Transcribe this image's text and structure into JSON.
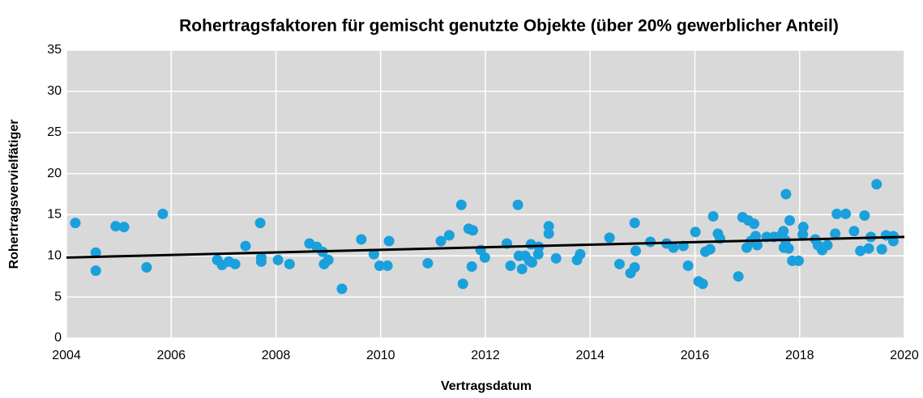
{
  "chart_data": {
    "type": "scatter",
    "title": "Rohertragsfaktoren für gemischt genutzte Objekte (über 20% gewerblicher Anteil)",
    "xlabel": "Vertragsdatum",
    "ylabel": "Rohertragsvervielfätiger",
    "xlim": [
      2004,
      2020
    ],
    "xticks": [
      2004,
      2006,
      2008,
      2010,
      2012,
      2014,
      2016,
      2018,
      2020
    ],
    "ylim": [
      0,
      35
    ],
    "yticks": [
      0,
      5,
      10,
      15,
      20,
      25,
      30,
      35
    ],
    "grid": true,
    "background": "#d9d9d9",
    "series": [
      {
        "color": "#1aa0dc",
        "x": [
          2004.17,
          2004.56,
          2004.56,
          2004.94,
          2005.1,
          2005.53,
          2005.84,
          2006.88,
          2006.97,
          2007.1,
          2007.22,
          2007.42,
          2007.7,
          2007.72,
          2007.72,
          2008.04,
          2008.26,
          2008.64,
          2008.78,
          2008.89,
          2008.92,
          2009.0,
          2009.26,
          2009.63,
          2009.87,
          2009.98,
          2010.13,
          2010.16,
          2010.9,
          2011.15,
          2011.31,
          2011.54,
          2011.57,
          2011.68,
          2011.76,
          2011.74,
          2011.91,
          2011.99,
          2012.41,
          2012.48,
          2012.62,
          2012.64,
          2012.7,
          2012.76,
          2012.84,
          2012.87,
          2012.89,
          2013.01,
          2013.02,
          2013.21,
          2013.21,
          2013.35,
          2013.75,
          2013.81,
          2014.37,
          2014.56,
          2014.77,
          2014.85,
          2014.85,
          2014.87,
          2015.15,
          2015.46,
          2015.59,
          2015.78,
          2015.87,
          2016.01,
          2016.07,
          2016.15,
          2016.2,
          2016.29,
          2016.35,
          2016.44,
          2016.48,
          2016.83,
          2016.91,
          2016.99,
          2017.02,
          2017.07,
          2017.13,
          2017.16,
          2017.19,
          2017.37,
          2017.51,
          2017.65,
          2017.69,
          2017.73,
          2017.7,
          2017.74,
          2017.79,
          2017.81,
          2017.86,
          2017.98,
          2018.06,
          2018.07,
          2018.3,
          2018.35,
          2018.43,
          2018.53,
          2018.68,
          2018.71,
          2018.88,
          2019.04,
          2019.16,
          2019.24,
          2019.32,
          2019.36,
          2019.47,
          2019.57,
          2019.65,
          2019.79,
          2019.79
        ],
        "values": [
          14.0,
          10.4,
          8.2,
          13.6,
          13.5,
          8.6,
          15.1,
          9.5,
          8.9,
          9.3,
          9.0,
          11.2,
          14.0,
          9.8,
          9.3,
          9.5,
          9.0,
          11.5,
          11.1,
          10.5,
          9.0,
          9.5,
          6.0,
          12.0,
          10.2,
          8.8,
          8.8,
          11.8,
          9.1,
          11.8,
          12.5,
          16.2,
          6.6,
          13.3,
          13.1,
          8.7,
          10.7,
          9.8,
          11.5,
          8.8,
          16.2,
          10.0,
          8.4,
          10.0,
          9.4,
          11.4,
          9.2,
          10.2,
          11.1,
          13.6,
          12.7,
          9.7,
          9.5,
          10.2,
          12.2,
          9.0,
          7.9,
          8.6,
          14.0,
          10.6,
          11.7,
          11.5,
          11.0,
          11.2,
          8.8,
          12.9,
          6.9,
          6.6,
          10.5,
          10.8,
          14.8,
          12.7,
          12.1,
          7.5,
          14.7,
          11.0,
          14.3,
          11.8,
          13.9,
          12.4,
          11.3,
          12.3,
          12.3,
          12.5,
          13.0,
          11.9,
          11.0,
          17.5,
          10.9,
          14.3,
          9.4,
          9.4,
          12.6,
          13.5,
          12.0,
          11.3,
          10.7,
          11.3,
          12.7,
          15.1,
          15.1,
          13.0,
          10.6,
          14.9,
          10.9,
          12.3,
          18.7,
          10.8,
          12.5,
          12.4,
          11.8
        ]
      }
    ],
    "trendline": {
      "x": [
        2004,
        2020
      ],
      "values": [
        9.8,
        12.3
      ],
      "color": "#000000"
    }
  }
}
